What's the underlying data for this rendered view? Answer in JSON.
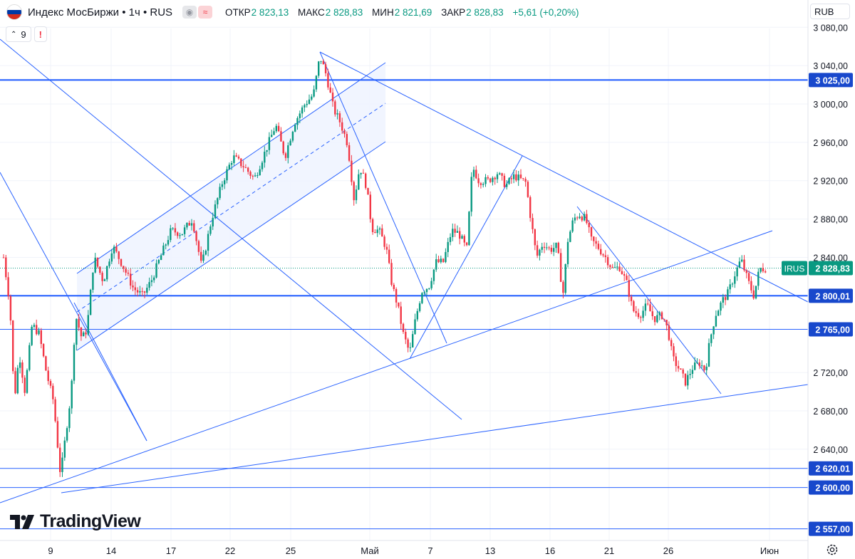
{
  "header": {
    "title": "Индекс МосБиржи • 1ч • RUS",
    "icons": [
      "eye-icon",
      "waves-icon"
    ],
    "ohlc": [
      {
        "key": "ОТКР",
        "value": "2 823,13"
      },
      {
        "key": "МАКС",
        "value": "2 828,83"
      },
      {
        "key": "МИН",
        "value": "2 821,69"
      },
      {
        "key": "ЗАКР",
        "value": "2 828,83"
      }
    ],
    "change": "+5,61 (+0,20%)",
    "indicator_count": "9",
    "alert": "!"
  },
  "currency": "RUB",
  "logo_text": "TradingView",
  "colors": {
    "up": "#089981",
    "down": "#f23645",
    "line": "#2962ff",
    "grid": "#f0f3fa",
    "label_bg": "#1848cc",
    "price_bg": "#089981",
    "channel_fill": "#eaf0ff"
  },
  "chart_data": {
    "type": "candlestick",
    "symbol": "IRUS",
    "last_price": "2 828,83",
    "ylim": [
      2557,
      3080
    ],
    "y_ticks": [
      2640,
      2680,
      2720,
      2840,
      2880,
      2920,
      2960,
      3000,
      3040
    ],
    "x_ticks": [
      "9",
      "14",
      "17",
      "22",
      "25",
      "Май",
      "7",
      "13",
      "16",
      "21",
      "26",
      "Июн"
    ],
    "horizontal_levels": [
      {
        "value": 3025.0,
        "label": "3 025,00",
        "style": "thick"
      },
      {
        "value": 2800.01,
        "label": "2 800,01",
        "style": "thick"
      },
      {
        "value": 2765.0,
        "label": "2 765,00",
        "style": "thin"
      },
      {
        "value": 2620.01,
        "label": "2 620,01",
        "style": "thin"
      },
      {
        "value": 2600.0,
        "label": "2 600,00",
        "style": "thin"
      },
      {
        "value": 2557.0,
        "label": "2 557,00",
        "style": "thin"
      }
    ],
    "price_path": [
      {
        "x": 5,
        "y": 2840
      },
      {
        "x": 14,
        "y": 2790
      },
      {
        "x": 20,
        "y": 2690
      },
      {
        "x": 27,
        "y": 2740
      },
      {
        "x": 35,
        "y": 2700
      },
      {
        "x": 45,
        "y": 2770
      },
      {
        "x": 55,
        "y": 2760
      },
      {
        "x": 65,
        "y": 2720
      },
      {
        "x": 75,
        "y": 2690
      },
      {
        "x": 85,
        "y": 2612
      },
      {
        "x": 93,
        "y": 2660
      },
      {
        "x": 100,
        "y": 2700
      },
      {
        "x": 106,
        "y": 2780
      },
      {
        "x": 115,
        "y": 2755
      },
      {
        "x": 122,
        "y": 2765
      },
      {
        "x": 132,
        "y": 2840
      },
      {
        "x": 145,
        "y": 2815
      },
      {
        "x": 158,
        "y": 2852
      },
      {
        "x": 172,
        "y": 2832
      },
      {
        "x": 187,
        "y": 2808
      },
      {
        "x": 200,
        "y": 2800
      },
      {
        "x": 212,
        "y": 2815
      },
      {
        "x": 225,
        "y": 2840
      },
      {
        "x": 240,
        "y": 2868
      },
      {
        "x": 255,
        "y": 2865
      },
      {
        "x": 270,
        "y": 2880
      },
      {
        "x": 283,
        "y": 2830
      },
      {
        "x": 297,
        "y": 2880
      },
      {
        "x": 312,
        "y": 2918
      },
      {
        "x": 327,
        "y": 2945
      },
      {
        "x": 342,
        "y": 2935
      },
      {
        "x": 357,
        "y": 2922
      },
      {
        "x": 372,
        "y": 2950
      },
      {
        "x": 387,
        "y": 2978
      },
      {
        "x": 400,
        "y": 2945
      },
      {
        "x": 413,
        "y": 2980
      },
      {
        "x": 428,
        "y": 3000
      },
      {
        "x": 440,
        "y": 3010
      },
      {
        "x": 449,
        "y": 3050
      },
      {
        "x": 458,
        "y": 3030
      },
      {
        "x": 468,
        "y": 2995
      },
      {
        "x": 478,
        "y": 2980
      },
      {
        "x": 488,
        "y": 2958
      },
      {
        "x": 497,
        "y": 2900
      },
      {
        "x": 505,
        "y": 2935
      },
      {
        "x": 514,
        "y": 2915
      },
      {
        "x": 522,
        "y": 2870
      },
      {
        "x": 532,
        "y": 2868
      },
      {
        "x": 542,
        "y": 2850
      },
      {
        "x": 550,
        "y": 2812
      },
      {
        "x": 558,
        "y": 2790
      },
      {
        "x": 566,
        "y": 2760
      },
      {
        "x": 575,
        "y": 2740
      },
      {
        "x": 583,
        "y": 2775
      },
      {
        "x": 592,
        "y": 2805
      },
      {
        "x": 602,
        "y": 2810
      },
      {
        "x": 612,
        "y": 2835
      },
      {
        "x": 622,
        "y": 2835
      },
      {
        "x": 634,
        "y": 2868
      },
      {
        "x": 644,
        "y": 2865
      },
      {
        "x": 655,
        "y": 2848
      },
      {
        "x": 663,
        "y": 2935
      },
      {
        "x": 672,
        "y": 2920
      },
      {
        "x": 685,
        "y": 2920
      },
      {
        "x": 698,
        "y": 2928
      },
      {
        "x": 710,
        "y": 2915
      },
      {
        "x": 722,
        "y": 2925
      },
      {
        "x": 738,
        "y": 2918
      },
      {
        "x": 745,
        "y": 2880
      },
      {
        "x": 753,
        "y": 2840
      },
      {
        "x": 762,
        "y": 2855
      },
      {
        "x": 772,
        "y": 2848
      },
      {
        "x": 782,
        "y": 2852
      },
      {
        "x": 790,
        "y": 2800
      },
      {
        "x": 797,
        "y": 2858
      },
      {
        "x": 805,
        "y": 2880
      },
      {
        "x": 813,
        "y": 2885
      },
      {
        "x": 822,
        "y": 2880
      },
      {
        "x": 830,
        "y": 2858
      },
      {
        "x": 840,
        "y": 2850
      },
      {
        "x": 850,
        "y": 2840
      },
      {
        "x": 860,
        "y": 2828
      },
      {
        "x": 870,
        "y": 2830
      },
      {
        "x": 880,
        "y": 2812
      },
      {
        "x": 888,
        "y": 2785
      },
      {
        "x": 898,
        "y": 2780
      },
      {
        "x": 908,
        "y": 2790
      },
      {
        "x": 918,
        "y": 2776
      },
      {
        "x": 930,
        "y": 2780
      },
      {
        "x": 938,
        "y": 2762
      },
      {
        "x": 944,
        "y": 2735
      },
      {
        "x": 952,
        "y": 2725
      },
      {
        "x": 962,
        "y": 2710
      },
      {
        "x": 972,
        "y": 2725
      },
      {
        "x": 982,
        "y": 2730
      },
      {
        "x": 990,
        "y": 2722
      },
      {
        "x": 996,
        "y": 2752
      },
      {
        "x": 1004,
        "y": 2780
      },
      {
        "x": 1014,
        "y": 2795
      },
      {
        "x": 1022,
        "y": 2803
      },
      {
        "x": 1030,
        "y": 2820
      },
      {
        "x": 1040,
        "y": 2838
      },
      {
        "x": 1050,
        "y": 2815
      },
      {
        "x": 1058,
        "y": 2800
      },
      {
        "x": 1066,
        "y": 2828
      },
      {
        "x": 1076,
        "y": 2828.83
      }
    ]
  }
}
